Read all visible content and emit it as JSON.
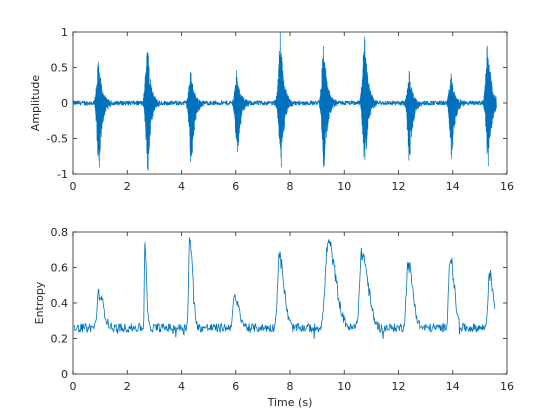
{
  "chart_data": [
    {
      "type": "line",
      "title": "",
      "xlabel": "",
      "ylabel": "Amplitude",
      "xlim": [
        0,
        16
      ],
      "ylim": [
        -1,
        1
      ],
      "xticks": [
        0,
        2,
        4,
        6,
        8,
        10,
        12,
        14,
        16
      ],
      "yticks": [
        -1,
        -0.5,
        0,
        0.5,
        1
      ],
      "xtick_labels": [
        "0",
        "2",
        "4",
        "6",
        "8",
        "10",
        "12",
        "14",
        "16"
      ],
      "ytick_labels": [
        "-1",
        "-0.5",
        "0",
        "0.5",
        "1"
      ],
      "grid": false,
      "line_color": "#0072BD",
      "signal_duration_s": 15.6,
      "noise_amplitude": 0.03,
      "bursts": [
        {
          "t": 0.95,
          "peak_pos": 0.62,
          "peak_neg": -1.0
        },
        {
          "t": 2.75,
          "peak_pos": 0.88,
          "peak_neg": -1.0
        },
        {
          "t": 4.35,
          "peak_pos": 0.45,
          "peak_neg": -0.98
        },
        {
          "t": 6.05,
          "peak_pos": 0.48,
          "peak_neg": -0.8
        },
        {
          "t": 7.65,
          "peak_pos": 1.0,
          "peak_neg": -1.0
        },
        {
          "t": 9.25,
          "peak_pos": 0.86,
          "peak_neg": -1.0
        },
        {
          "t": 10.75,
          "peak_pos": 1.0,
          "peak_neg": -1.0
        },
        {
          "t": 12.4,
          "peak_pos": 0.46,
          "peak_neg": -0.88
        },
        {
          "t": 13.95,
          "peak_pos": 0.42,
          "peak_neg": -0.85
        },
        {
          "t": 15.3,
          "peak_pos": 1.0,
          "peak_neg": -1.0
        }
      ]
    },
    {
      "type": "line",
      "title": "",
      "xlabel": "Time (s)",
      "ylabel": "Entropy",
      "xlim": [
        0,
        16
      ],
      "ylim": [
        0,
        0.8
      ],
      "xticks": [
        0,
        2,
        4,
        6,
        8,
        10,
        12,
        14,
        16
      ],
      "yticks": [
        0,
        0.2,
        0.4,
        0.6,
        0.8
      ],
      "xtick_labels": [
        "0",
        "2",
        "4",
        "6",
        "8",
        "10",
        "12",
        "14",
        "16"
      ],
      "ytick_labels": [
        "0",
        "0.2",
        "0.4",
        "0.6",
        "0.8"
      ],
      "grid": false,
      "line_color": "#0072BD",
      "baseline": 0.26,
      "noise_amplitude": 0.025,
      "x_start": 0.05,
      "x_end": 15.55,
      "events": [
        {
          "t": 0.95,
          "peak": 0.45,
          "width": 0.35
        },
        {
          "t": 2.65,
          "peak": 0.7,
          "width": 0.12
        },
        {
          "t": 4.3,
          "peak": 0.76,
          "width": 0.22
        },
        {
          "t": 5.95,
          "peak": 0.42,
          "width": 0.35
        },
        {
          "t": 7.6,
          "peak": 0.66,
          "width": 0.35
        },
        {
          "t": 9.4,
          "peak": 0.74,
          "width": 0.55
        },
        {
          "t": 10.65,
          "peak": 0.68,
          "width": 0.45
        },
        {
          "t": 12.35,
          "peak": 0.62,
          "width": 0.35
        },
        {
          "t": 13.9,
          "peak": 0.66,
          "width": 0.3
        },
        {
          "t": 15.35,
          "peak": 0.56,
          "width": 0.3
        }
      ]
    }
  ]
}
